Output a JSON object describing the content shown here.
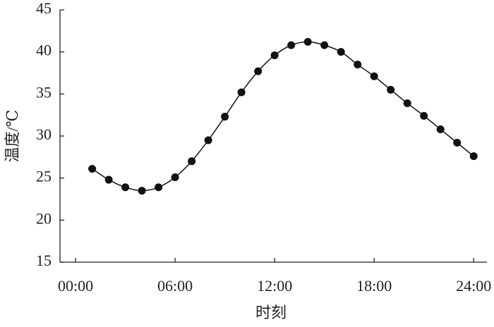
{
  "chart_data": {
    "type": "line",
    "x_label": "时刻",
    "y_label": "温度/℃",
    "x": [
      1,
      2,
      3,
      4,
      5,
      6,
      7,
      8,
      9,
      10,
      11,
      12,
      13,
      14,
      15,
      16,
      17,
      18,
      19,
      20,
      21,
      22,
      23,
      24
    ],
    "series": [
      {
        "color": "#111111",
        "values": [
          26.1,
          24.8,
          23.9,
          23.5,
          23.9,
          25.1,
          27.0,
          29.5,
          32.3,
          35.2,
          37.7,
          39.6,
          40.8,
          41.2,
          40.8,
          40.0,
          38.5,
          37.1,
          35.5,
          33.9,
          32.4,
          30.8,
          29.2,
          27.6
        ]
      }
    ],
    "xlim": [
      -0.94,
      24.8
    ],
    "ylim": [
      15,
      45
    ],
    "xticks": [
      {
        "value": 0,
        "label": "00:00"
      },
      {
        "value": 6,
        "label": "06:00"
      },
      {
        "value": 12,
        "label": "12:00"
      },
      {
        "value": 18,
        "label": "18:00"
      },
      {
        "value": 24,
        "label": "24:00"
      }
    ],
    "yticks": [
      15,
      20,
      25,
      30,
      35,
      40,
      45
    ]
  }
}
